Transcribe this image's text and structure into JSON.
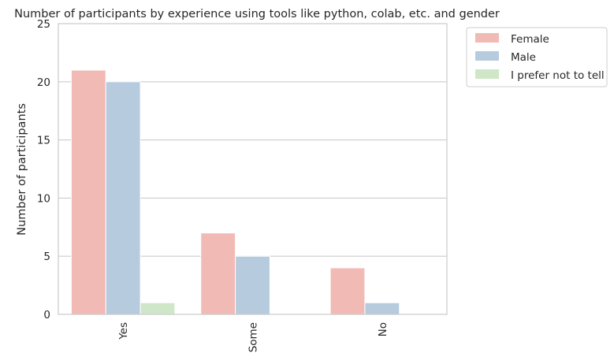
{
  "chart_data": {
    "type": "bar",
    "title": "Number of participants by experience using tools like python, colab, etc. and gender",
    "xlabel": "",
    "ylabel": "Number of participants",
    "categories": [
      "Yes",
      "Some",
      "No"
    ],
    "series": [
      {
        "name": "Female",
        "color": "#f2bab5",
        "values": [
          21,
          7,
          4
        ]
      },
      {
        "name": "Male",
        "color": "#b6cbde",
        "values": [
          20,
          5,
          1
        ]
      },
      {
        "name": "I prefer not to tell",
        "color": "#cfe6c8",
        "values": [
          1,
          0,
          0
        ]
      }
    ],
    "ylim": [
      0,
      25
    ],
    "yticks": [
      0,
      5,
      10,
      15,
      20,
      25
    ],
    "grid": "horizontal",
    "legend_position": "outside-right"
  }
}
